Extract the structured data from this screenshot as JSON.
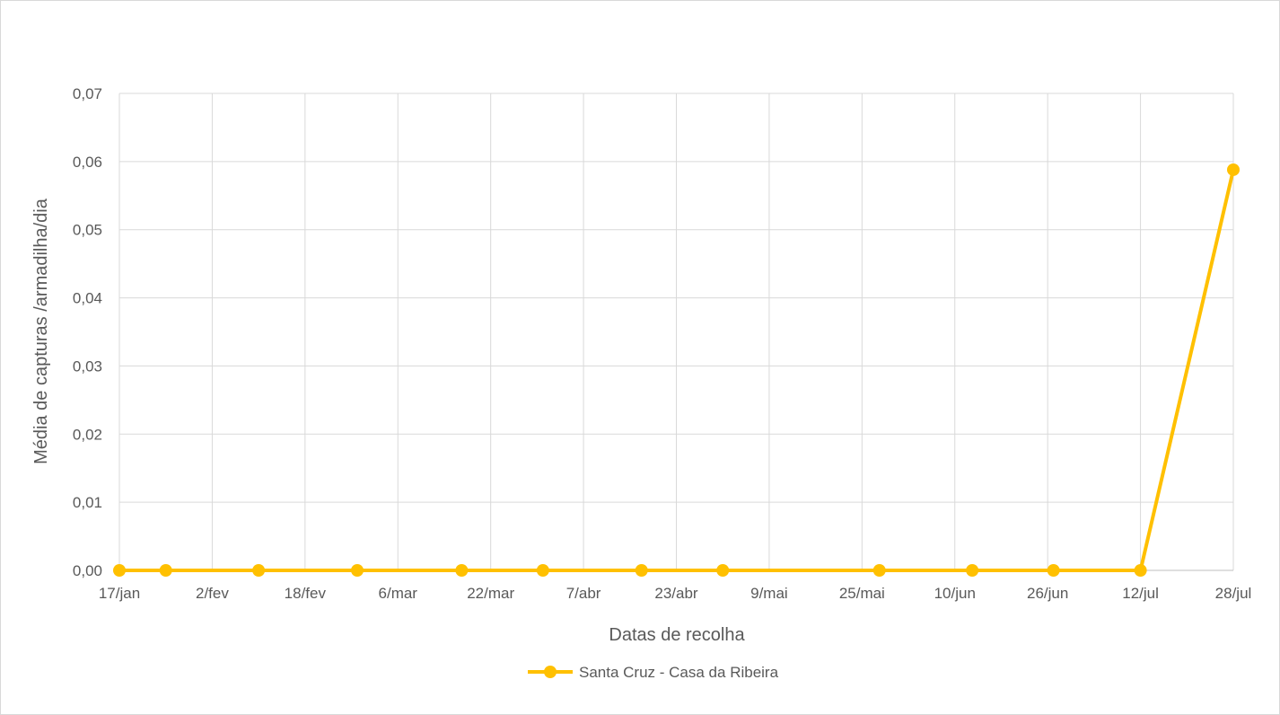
{
  "chart_data": {
    "type": "line",
    "title": "",
    "xlabel": "Datas de recolha",
    "ylabel": "Média de capturas /armadilha/dia",
    "x_ticks": [
      "17/jan",
      "2/fev",
      "18/fev",
      "6/mar",
      "22/mar",
      "7/abr",
      "23/abr",
      "9/mai",
      "25/mai",
      "10/jun",
      "26/jun",
      "12/jul",
      "28/jul"
    ],
    "x_domain": [
      "17/jan",
      "28/jul"
    ],
    "y_ticks": [
      "0,00",
      "0,01",
      "0,02",
      "0,03",
      "0,04",
      "0,05",
      "0,06",
      "0,07"
    ],
    "ylim": [
      0,
      0.07
    ],
    "grid": true,
    "legend_position": "bottom",
    "series": [
      {
        "name": "Santa Cruz - Casa da Ribeira",
        "color": "#FFC000",
        "points": [
          {
            "x": "17/jan",
            "y": 0
          },
          {
            "x": "25/jan",
            "y": 0
          },
          {
            "x": "10/fev",
            "y": 0
          },
          {
            "x": "27/fev",
            "y": 0
          },
          {
            "x": "17/mar",
            "y": 0
          },
          {
            "x": "31/mar",
            "y": 0
          },
          {
            "x": "17/abr",
            "y": 0
          },
          {
            "x": "1/mai",
            "y": 0
          },
          {
            "x": "28/mai",
            "y": 0
          },
          {
            "x": "13/jun",
            "y": 0
          },
          {
            "x": "27/jun",
            "y": 0
          },
          {
            "x": "12/jul",
            "y": 0
          },
          {
            "x": "28/jul",
            "y": 0.0588
          }
        ]
      }
    ]
  }
}
